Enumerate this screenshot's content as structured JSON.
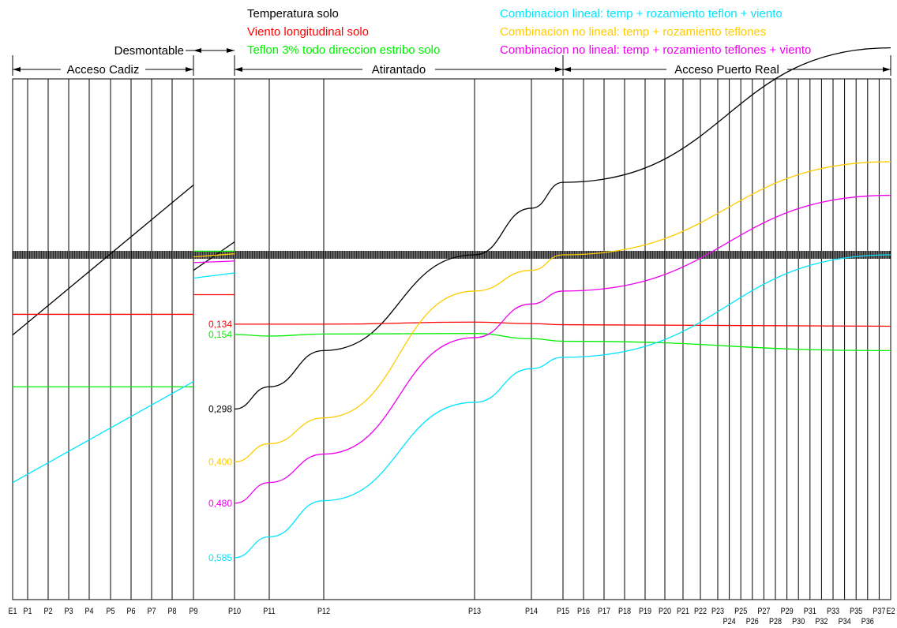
{
  "chart_data": {
    "type": "line",
    "legend": [
      {
        "text": "Temperatura solo",
        "color": "#000000"
      },
      {
        "text": "Viento longitudinal solo",
        "color": "#ff0000"
      },
      {
        "text": "Teflon 3% todo direccion estribo solo",
        "color": "#00ee00"
      },
      {
        "text": "Combinacion lineal: temp + rozamiento teflon + viento",
        "color": "#00e5ff"
      },
      {
        "text": "Combinacion no lineal: temp + rozamiento teflones",
        "color": "#ffcc00"
      },
      {
        "text": "Combinacion no lineal: temp + rozamiento teflones + viento",
        "color": "#ee00ee"
      }
    ],
    "sections": [
      {
        "label": "Acceso Cadiz",
        "from": "E1",
        "to": "P9"
      },
      {
        "label": "Desmontable",
        "from": "P9",
        "to": "P10"
      },
      {
        "label": "Atirantado",
        "from": "P10",
        "to": "P15"
      },
      {
        "label": "Acceso Puerto Real",
        "from": "P15",
        "to": "E2"
      }
    ],
    "supports": [
      "E1",
      "P1",
      "P2",
      "P3",
      "P4",
      "P5",
      "P6",
      "P7",
      "P8",
      "P9",
      "P10",
      "P11",
      "P12",
      "P13",
      "P14",
      "P15",
      "P16",
      "P17",
      "P18",
      "P19",
      "P20",
      "P21",
      "P22",
      "P23",
      "P24",
      "P25",
      "P26",
      "P27",
      "P28",
      "P29",
      "P30",
      "P31",
      "P32",
      "P33",
      "P34",
      "P35",
      "P36",
      "P37",
      "E2"
    ],
    "value_labels": [
      {
        "text": "0,134",
        "series": 1
      },
      {
        "text": "0,154",
        "series": 2
      },
      {
        "text": "0,298",
        "series": 0
      },
      {
        "text": "0,400",
        "series": 4
      },
      {
        "text": "0,480",
        "series": 5
      },
      {
        "text": "0,585",
        "series": 3
      }
    ],
    "series": [
      {
        "name": "Temperatura solo",
        "segments": [
          [
            [
              "E1",
              -0.155
            ],
            [
              "P9",
              0.135
            ]
          ],
          [
            [
              "P9",
              -0.03
            ],
            [
              "P10",
              0.025
            ]
          ],
          [
            [
              "P10",
              -0.298
            ],
            [
              "P11",
              -0.255
            ],
            [
              "P12",
              -0.185
            ],
            [
              "P13",
              0.0
            ],
            [
              "P14",
              0.09
            ],
            [
              "P15",
              0.14
            ],
            [
              "E2",
              0.4
            ]
          ]
        ]
      },
      {
        "name": "Viento longitudinal solo",
        "segments": [
          [
            [
              "E1",
              -0.115
            ],
            [
              "P9",
              -0.115
            ]
          ],
          [
            [
              "P9",
              -0.077
            ],
            [
              "P10",
              -0.077
            ]
          ],
          [
            [
              "P10",
              -0.134
            ],
            [
              "P12",
              -0.134
            ],
            [
              "P13",
              -0.13
            ],
            [
              "P14",
              -0.133
            ],
            [
              "P15",
              -0.135
            ],
            [
              "E2",
              -0.138
            ]
          ]
        ]
      },
      {
        "name": "Teflon 3% todo direccion estribo solo",
        "segments": [
          [
            [
              "E1",
              -0.255
            ],
            [
              "P9",
              -0.255
            ]
          ],
          [
            [
              "P9",
              0.007
            ],
            [
              "P10",
              0.007
            ]
          ],
          [
            [
              "P10",
              -0.154
            ],
            [
              "P11",
              -0.157
            ],
            [
              "P12",
              -0.153
            ],
            [
              "P13",
              -0.152
            ],
            [
              "P14",
              -0.162
            ],
            [
              "P15",
              -0.167
            ],
            [
              "E2",
              -0.185
            ]
          ]
        ]
      },
      {
        "name": "Combinacion lineal: temp + rozamiento teflon + viento",
        "segments": [
          [
            [
              "E1",
              -0.44
            ],
            [
              "P9",
              -0.245
            ]
          ],
          [
            [
              "P9",
              -0.045
            ],
            [
              "P10",
              -0.035
            ]
          ],
          [
            [
              "P10",
              -0.585
            ],
            [
              "P11",
              -0.545
            ],
            [
              "P12",
              -0.475
            ],
            [
              "P13",
              -0.285
            ],
            [
              "P14",
              -0.22
            ],
            [
              "P15",
              -0.198
            ],
            [
              "E2",
              0.0
            ]
          ]
        ]
      },
      {
        "name": "Combinacion no lineal: temp + rozamiento teflones",
        "segments": [
          [
            [
              "P9",
              -0.004
            ],
            [
              "P10",
              0.002
            ]
          ],
          [
            [
              "P10",
              -0.4
            ],
            [
              "P11",
              -0.365
            ],
            [
              "P12",
              -0.315
            ],
            [
              "P13",
              -0.07
            ],
            [
              "P14",
              -0.03
            ],
            [
              "P15",
              0.0
            ],
            [
              "E2",
              0.18
            ]
          ]
        ]
      },
      {
        "name": "Combinacion no lineal: temp + rozamiento teflones + viento",
        "segments": [
          [
            [
              "P9",
              -0.015
            ],
            [
              "P10",
              -0.012
            ]
          ],
          [
            [
              "P10",
              -0.48
            ],
            [
              "P11",
              -0.44
            ],
            [
              "P12",
              -0.385
            ],
            [
              "P13",
              -0.16
            ],
            [
              "P14",
              -0.095
            ],
            [
              "P15",
              -0.07
            ],
            [
              "E2",
              0.115
            ]
          ]
        ]
      }
    ]
  }
}
